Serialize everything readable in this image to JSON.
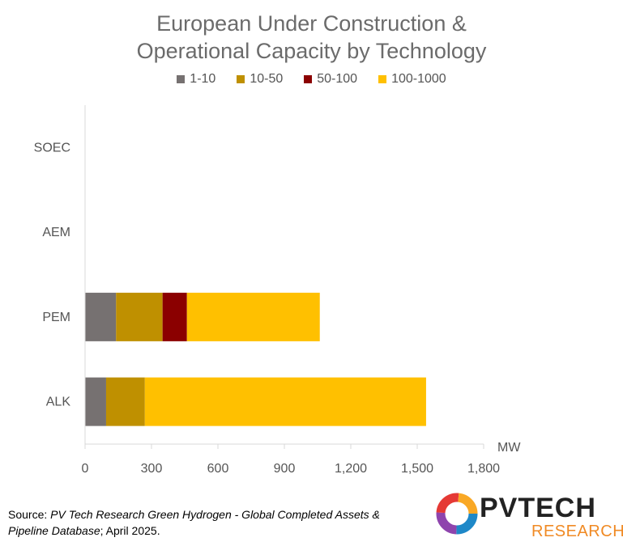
{
  "chart_data": {
    "type": "bar",
    "orientation": "horizontal",
    "stacked": true,
    "title_lines": [
      "European Under Construction &",
      "Operational Capacity by Technology"
    ],
    "categories": [
      "SOEC",
      "AEM",
      "PEM",
      "ALK"
    ],
    "series": [
      {
        "name": "1-10",
        "color": "#767171",
        "values": [
          0,
          0,
          140,
          95
        ]
      },
      {
        "name": "10-50",
        "color": "#bf9000",
        "values": [
          0,
          0,
          210,
          175
        ]
      },
      {
        "name": "50-100",
        "color": "#8b0000",
        "values": [
          0,
          0,
          110,
          0
        ]
      },
      {
        "name": "100-1000",
        "color": "#ffc000",
        "values": [
          0,
          0,
          600,
          1270
        ]
      }
    ],
    "xlabel": "MW",
    "xlim": [
      0,
      1800
    ],
    "xticks": [
      0,
      300,
      600,
      900,
      1200,
      1500,
      1800
    ],
    "xtick_labels": [
      "0",
      "300",
      "600",
      "900",
      "1,200",
      "1,500",
      "1,800"
    ],
    "legend_position": "top",
    "grid": false
  },
  "source": {
    "prefix": "Source: ",
    "italic": "PV Tech Research Green Hydrogen - Global Completed Assets & Pipeline Database",
    "suffix": "; April 2025."
  },
  "logo": {
    "word": "PVTECH",
    "sub": "RESEARCH"
  }
}
